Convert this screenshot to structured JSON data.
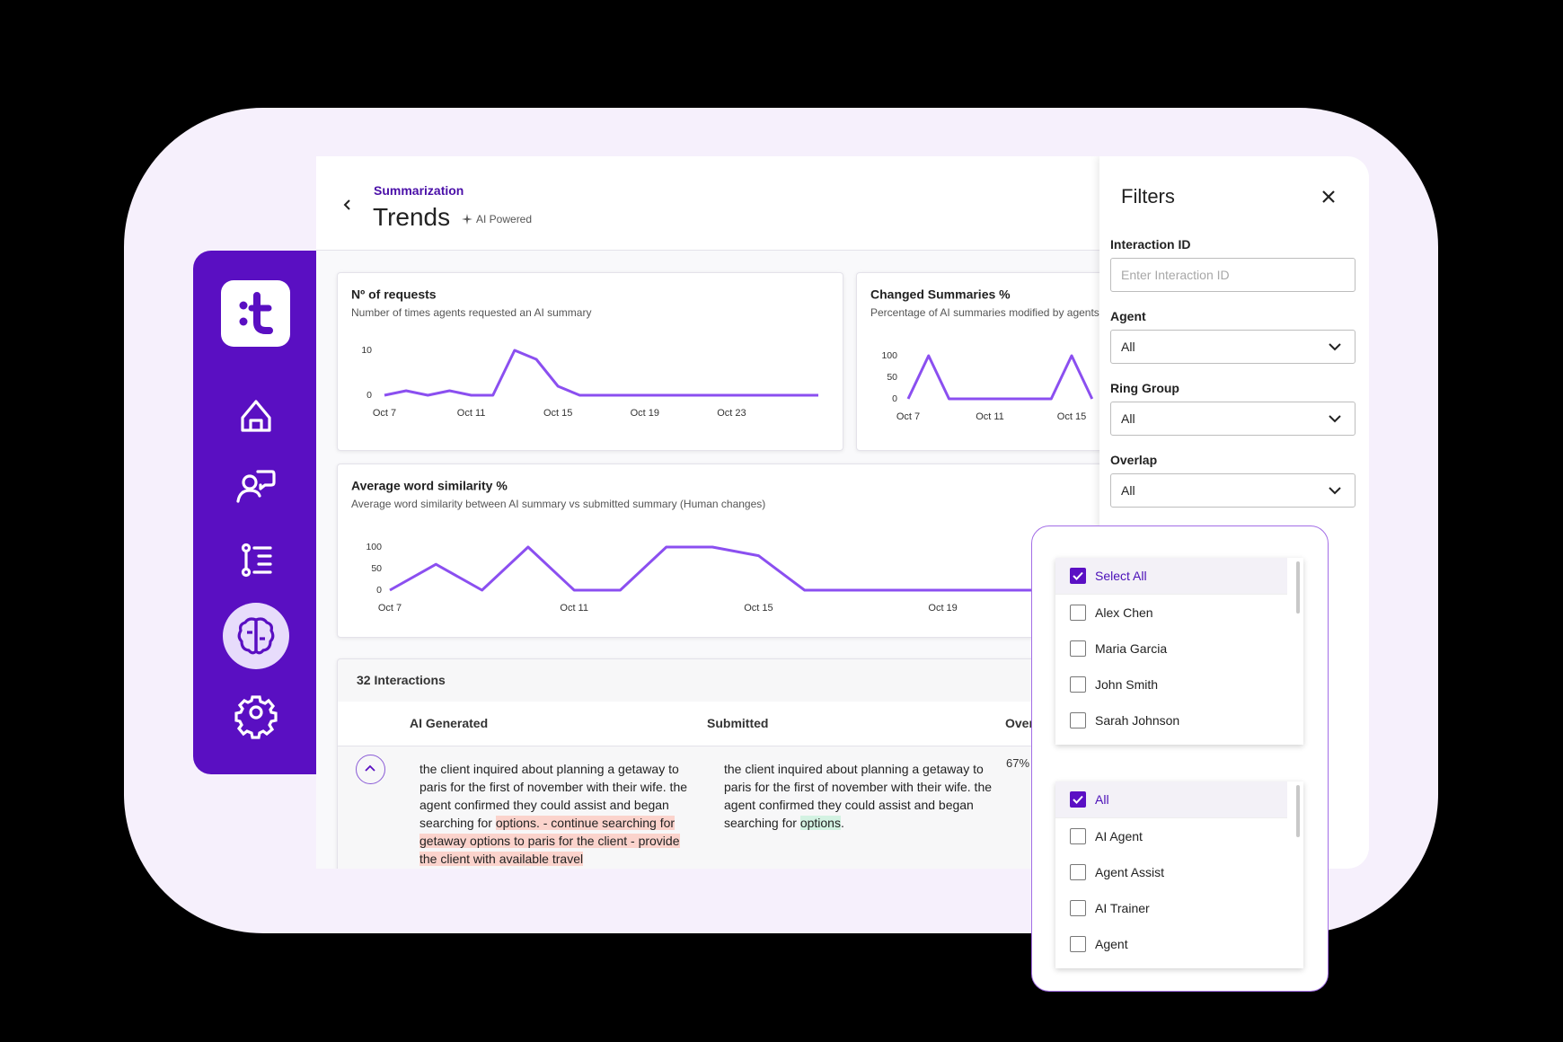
{
  "header": {
    "breadcrumb": "Summarization",
    "title": "Trends",
    "badge": "AI Powered"
  },
  "chart_data": [
    {
      "type": "line",
      "title": "Nº of requests",
      "subtitle": "Number of times agents requested an AI summary",
      "categories": [
        "Oct 7",
        null,
        null,
        null,
        "Oct 11",
        null,
        null,
        null,
        "Oct 15",
        null,
        null,
        null,
        "Oct 19",
        null,
        null,
        null,
        "Oct 23",
        null,
        null,
        null,
        null
      ],
      "values": [
        0,
        1,
        0,
        1,
        0,
        0,
        10,
        8,
        2,
        0,
        0,
        0,
        0,
        0,
        0,
        0,
        0,
        0,
        0,
        0,
        0
      ],
      "ylim": [
        0,
        10
      ],
      "yticks": [
        0,
        10
      ],
      "color": "#8b4ff0"
    },
    {
      "type": "line",
      "title": "Changed Summaries %",
      "subtitle": "Percentage of AI summaries modified by agents",
      "categories": [
        "Oct 7",
        null,
        null,
        null,
        "Oct 11",
        null,
        null,
        null,
        "Oct 15",
        null
      ],
      "values": [
        0,
        100,
        0,
        0,
        0,
        0,
        0,
        0,
        100,
        0
      ],
      "ylim": [
        0,
        100
      ],
      "yticks": [
        0,
        50,
        100
      ],
      "color": "#8b4ff0"
    },
    {
      "type": "line",
      "title": "Average word similarity %",
      "subtitle": "Average word similarity between AI summary vs submitted summary (Human changes)",
      "categories": [
        "Oct 7",
        null,
        null,
        null,
        "Oct 11",
        null,
        null,
        null,
        "Oct 15",
        null,
        null,
        null,
        "Oct 19",
        null,
        null
      ],
      "values": [
        0,
        60,
        0,
        100,
        0,
        0,
        100,
        100,
        80,
        0,
        0,
        0,
        0,
        0,
        0
      ],
      "ylim": [
        0,
        100
      ],
      "yticks": [
        0,
        50,
        100
      ],
      "color": "#8b4ff0"
    }
  ],
  "table": {
    "count_label": "32 Interactions",
    "columns": [
      "AI Generated",
      "Submitted",
      "Overlap"
    ],
    "rows": [
      {
        "ai_generated": [
          {
            "text": "the client inquired about planning a getaway to paris for the first of november with their wife. the agent confirmed they could assist and began searching for ",
            "highlight": false
          },
          {
            "text": "options. - continue searching for getaway options to paris for the client - provide the client with available travel",
            "highlight": true
          }
        ],
        "submitted": [
          {
            "text": "the client inquired about planning a getaway to paris for the first of november with their wife. the agent confirmed they could assist and began searching for ",
            "highlight": false
          },
          {
            "text": "options",
            "highlight": true
          },
          {
            "text": ".",
            "highlight": false
          }
        ],
        "overlap": "67%"
      }
    ]
  },
  "filters": {
    "title": "Filters",
    "fields": [
      {
        "label": "Interaction ID",
        "placeholder": "Enter Interaction ID"
      },
      {
        "label": "Agent",
        "value": "All"
      },
      {
        "label": "Ring Group",
        "value": "All"
      },
      {
        "label": "Overlap",
        "value": "All"
      }
    ]
  },
  "dropdown": {
    "lists": [
      [
        {
          "label": "Select All",
          "checked": true
        },
        {
          "label": "Alex Chen",
          "checked": false
        },
        {
          "label": "Maria Garcia",
          "checked": false
        },
        {
          "label": "John Smith",
          "checked": false
        },
        {
          "label": "Sarah Johnson",
          "checked": false
        }
      ],
      [
        {
          "label": "All",
          "checked": true
        },
        {
          "label": "AI Agent",
          "checked": false
        },
        {
          "label": "Agent Assist",
          "checked": false
        },
        {
          "label": "AI Trainer",
          "checked": false
        },
        {
          "label": "Agent",
          "checked": false
        }
      ]
    ]
  }
}
